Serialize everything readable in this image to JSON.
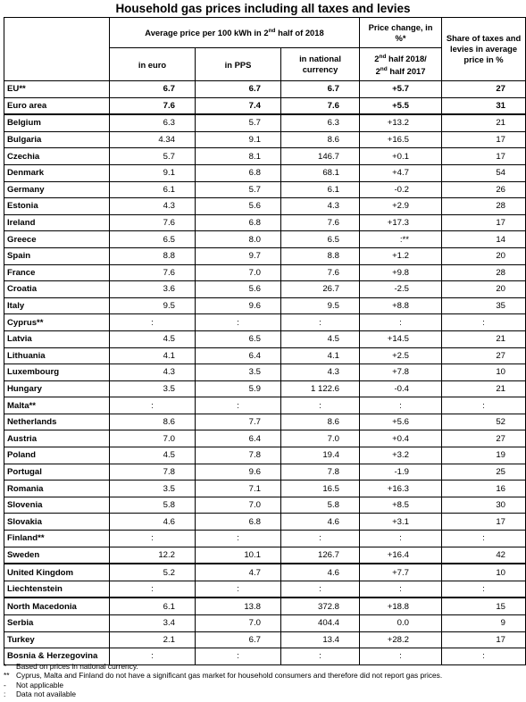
{
  "title": "Household gas prices including all taxes and levies",
  "headers": {
    "avg_price_main": "Average price per 100 kWh in 2nd half of 2018",
    "avg_price_pre": "Average price per 100 kWh in 2",
    "avg_price_sup": "nd",
    "avg_price_post": " half of 2018",
    "price_change": "Price change, in %*",
    "share_taxes": "Share of taxes and levies in average price in %",
    "in_euro": "in euro",
    "in_pps": "in PPS",
    "in_national": "in national currency",
    "change_period": "2nd half 2018/ 2nd half 2017",
    "cp_a": "2",
    "cp_a_sup": "nd",
    "cp_b": " half 2018/",
    "cp_c": "2",
    "cp_c_sup": "nd",
    "cp_d": " half 2017"
  },
  "rows": [
    {
      "country": "EU**",
      "euro": "6.7",
      "pps": "6.7",
      "national": "6.7",
      "change": "+5.7",
      "taxes": "27"
    },
    {
      "country": "Euro area",
      "euro": "7.6",
      "pps": "7.4",
      "national": "7.6",
      "change": "+5.5",
      "taxes": "31"
    },
    {
      "country": "Belgium",
      "euro": "6.3",
      "pps": "5.7",
      "national": "6.3",
      "change": "+13.2",
      "taxes": "21"
    },
    {
      "country": "Bulgaria",
      "euro": "4.34",
      "pps": "9.1",
      "national": "8.6",
      "change": "+16.5",
      "taxes": "17"
    },
    {
      "country": "Czechia",
      "euro": "5.7",
      "pps": "8.1",
      "national": "146.7",
      "change": "+0.1",
      "taxes": "17"
    },
    {
      "country": "Denmark",
      "euro": "9.1",
      "pps": "6.8",
      "national": "68.1",
      "change": "+4.7",
      "taxes": "54"
    },
    {
      "country": "Germany",
      "euro": "6.1",
      "pps": "5.7",
      "national": "6.1",
      "change": "-0.2",
      "taxes": "26"
    },
    {
      "country": "Estonia",
      "euro": "4.3",
      "pps": "5.6",
      "national": "4.3",
      "change": "+2.9",
      "taxes": "28"
    },
    {
      "country": "Ireland",
      "euro": "7.6",
      "pps": "6.8",
      "national": "7.6",
      "change": "+17.3",
      "taxes": "17"
    },
    {
      "country": "Greece",
      "euro": "6.5",
      "pps": "8.0",
      "national": "6.5",
      "change": ":**",
      "taxes": "14"
    },
    {
      "country": "Spain",
      "euro": "8.8",
      "pps": "9.7",
      "national": "8.8",
      "change": "+1.2",
      "taxes": "20"
    },
    {
      "country": "France",
      "euro": "7.6",
      "pps": "7.0",
      "national": "7.6",
      "change": "+9.8",
      "taxes": "28"
    },
    {
      "country": "Croatia",
      "euro": "3.6",
      "pps": "5.6",
      "national": "26.7",
      "change": "-2.5",
      "taxes": "20"
    },
    {
      "country": "Italy",
      "euro": "9.5",
      "pps": "9.6",
      "national": "9.5",
      "change": "+8.8",
      "taxes": "35"
    },
    {
      "country": "Cyprus**",
      "euro": ":",
      "pps": ":",
      "national": ":",
      "change": ":",
      "taxes": ":"
    },
    {
      "country": "Latvia",
      "euro": "4.5",
      "pps": "6.5",
      "national": "4.5",
      "change": "+14.5",
      "taxes": "21"
    },
    {
      "country": "Lithuania",
      "euro": "4.1",
      "pps": "6.4",
      "national": "4.1",
      "change": "+2.5",
      "taxes": "27"
    },
    {
      "country": "Luxembourg",
      "euro": "4.3",
      "pps": "3.5",
      "national": "4.3",
      "change": "+7.8",
      "taxes": "10"
    },
    {
      "country": "Hungary",
      "euro": "3.5",
      "pps": "5.9",
      "national": "1 122.6",
      "change": "-0.4",
      "taxes": "21"
    },
    {
      "country": "Malta**",
      "euro": ":",
      "pps": ":",
      "national": ":",
      "change": ":",
      "taxes": ":"
    },
    {
      "country": "Netherlands",
      "euro": "8.6",
      "pps": "7.7",
      "national": "8.6",
      "change": "+5.6",
      "taxes": "52"
    },
    {
      "country": "Austria",
      "euro": "7.0",
      "pps": "6.4",
      "national": "7.0",
      "change": "+0.4",
      "taxes": "27"
    },
    {
      "country": "Poland",
      "euro": "4.5",
      "pps": "7.8",
      "national": "19.4",
      "change": "+3.2",
      "taxes": "19"
    },
    {
      "country": "Portugal",
      "euro": "7.8",
      "pps": "9.6",
      "national": "7.8",
      "change": "-1.9",
      "taxes": "25"
    },
    {
      "country": "Romania",
      "euro": "3.5",
      "pps": "7.1",
      "national": "16.5",
      "change": "+16.3",
      "taxes": "16"
    },
    {
      "country": "Slovenia",
      "euro": "5.8",
      "pps": "7.0",
      "national": "5.8",
      "change": "+8.5",
      "taxes": "30"
    },
    {
      "country": "Slovakia",
      "euro": "4.6",
      "pps": "6.8",
      "national": "4.6",
      "change": "+3.1",
      "taxes": "17"
    },
    {
      "country": "Finland**",
      "euro": ":",
      "pps": ":",
      "national": ":",
      "change": ":",
      "taxes": ":"
    },
    {
      "country": "Sweden",
      "euro": "12.2",
      "pps": "10.1",
      "national": "126.7",
      "change": "+16.4",
      "taxes": "42"
    },
    {
      "country": "United Kingdom",
      "euro": "5.2",
      "pps": "4.7",
      "national": "4.6",
      "change": "+7.7",
      "taxes": "10"
    },
    {
      "country": "Liechtenstein",
      "euro": ":",
      "pps": ":",
      "national": ":",
      "change": ":",
      "taxes": ":"
    },
    {
      "country": "North Macedonia",
      "euro": "6.1",
      "pps": "13.8",
      "national": "372.8",
      "change": "+18.8",
      "taxes": "15"
    },
    {
      "country": "Serbia",
      "euro": "3.4",
      "pps": "7.0",
      "national": "404.4",
      "change": "0.0",
      "taxes": "9"
    },
    {
      "country": "Turkey",
      "euro": "2.1",
      "pps": "6.7",
      "national": "13.4",
      "change": "+28.2",
      "taxes": "17"
    },
    {
      "country": "Bosnia & Herzegovina",
      "euro": ":",
      "pps": ":",
      "national": ":",
      "change": ":",
      "taxes": ":"
    }
  ],
  "footnotes": [
    {
      "mark": "*",
      "text": "Based on prices in national currency."
    },
    {
      "mark": "**",
      "text": "Cyprus, Malta and Finland do not have a significant gas market for household consumers and therefore did not report gas prices."
    },
    {
      "mark": "-",
      "text": "Not applicable"
    },
    {
      "mark": ":",
      "text": "Data not available"
    }
  ]
}
